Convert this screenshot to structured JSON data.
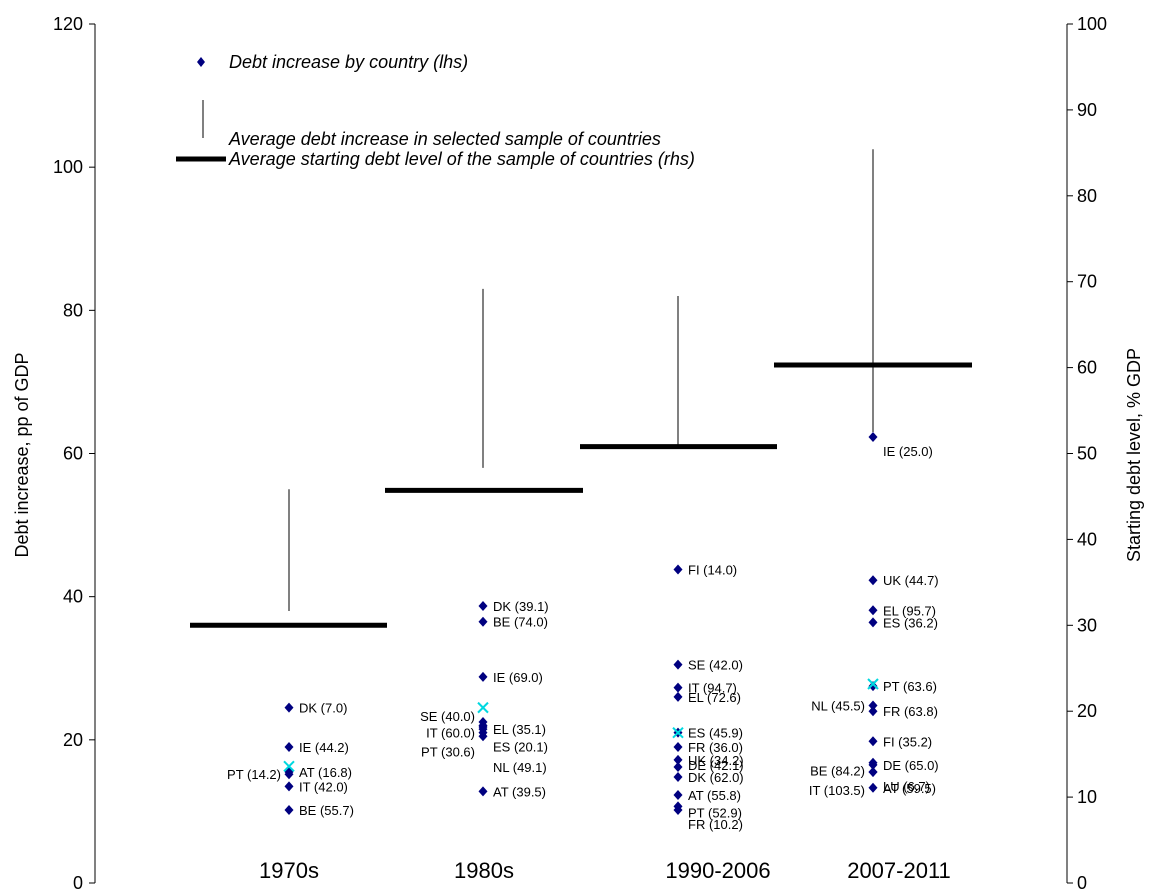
{
  "chart_data": {
    "type": "scatter",
    "categories": [
      "1970s",
      "1980s",
      "1990-2006",
      "2007-2011"
    ],
    "y_left": {
      "label": "Debt increase, pp of GDP",
      "ylim": [
        0,
        120
      ],
      "ticks": [
        "0",
        "20",
        "40",
        "60",
        "80",
        "100",
        "120"
      ]
    },
    "y_right": {
      "label": "Starting debt level,  % GDP",
      "ylim": [
        0,
        100
      ],
      "ticks": [
        "0",
        "10",
        "20",
        "30",
        "40",
        "50",
        "60",
        "70",
        "80",
        "90",
        "100"
      ]
    },
    "legend": {
      "placement": "top-left",
      "entries": [
        "Debt increase by country (lhs)",
        "Average debt increase in selected sample of countries",
        "Average starting debt level of the sample of countries (rhs)"
      ]
    },
    "colors": {
      "points": "#000080",
      "average_marker": "#00d8e0",
      "bars": "#000000"
    },
    "series": [
      {
        "category": "1970s",
        "avg_starting_debt_rhs": 30,
        "avg_increase_range": [
          38,
          55
        ],
        "avg_increase_marker": 16.3,
        "points": [
          {
            "label": "DK (7.0)",
            "value": 24.5,
            "side": "right"
          },
          {
            "label": "IE (44.2)",
            "value": 19,
            "side": "right"
          },
          {
            "label": "AT (16.8)",
            "value": 15.5,
            "side": "right"
          },
          {
            "label": "PT (14.2)",
            "value": 15.2,
            "side": "left"
          },
          {
            "label": "IT (42.0)",
            "value": 13.5,
            "side": "right"
          },
          {
            "label": "BE (55.7)",
            "value": 10.2,
            "side": "right"
          }
        ]
      },
      {
        "category": "1980s",
        "avg_starting_debt_rhs": 45.7,
        "avg_increase_range": [
          58,
          83
        ],
        "avg_increase_marker": 24.5,
        "points": [
          {
            "label": "DK (39.1)",
            "value": 38.7,
            "side": "right"
          },
          {
            "label": "BE (74.0)",
            "value": 36.5,
            "side": "right"
          },
          {
            "label": "IE (69.0)",
            "value": 28.8,
            "side": "right"
          },
          {
            "label": "SE (40.0)",
            "value": 22.5,
            "side": "left"
          },
          {
            "label": "EL (35.1)",
            "value": 21.5,
            "side": "right"
          },
          {
            "label": "IT (60.0)",
            "value": 21,
            "side": "left"
          },
          {
            "label": "ES (20.1)",
            "value": 20.5,
            "side": "right"
          },
          {
            "label": "PT (30.6)",
            "value": 22,
            "side": "left"
          },
          {
            "label": "NL (49.1)",
            "value": 21.8,
            "side": "right"
          },
          {
            "label": "AT (39.5)",
            "value": 12.8,
            "side": "right"
          }
        ]
      },
      {
        "category": "1990-2006",
        "avg_starting_debt_rhs": 50.8,
        "avg_increase_range": [
          61,
          82
        ],
        "avg_increase_marker": 21,
        "points": [
          {
            "label": "FI (14.0)",
            "value": 43.8,
            "side": "right"
          },
          {
            "label": "SE (42.0)",
            "value": 30.5,
            "side": "right"
          },
          {
            "label": "IT (94.7)",
            "value": 27.3,
            "side": "right"
          },
          {
            "label": "EL (72.6)",
            "value": 26,
            "side": "right"
          },
          {
            "label": "ES (45.9)",
            "value": 21,
            "side": "right"
          },
          {
            "label": "FR (36.0)",
            "value": 19,
            "side": "right"
          },
          {
            "label": "UK (34.2)",
            "value": 17.2,
            "side": "right"
          },
          {
            "label": "DE (42.1)",
            "value": 16.2,
            "side": "right"
          },
          {
            "label": "DK (62.0)",
            "value": 14.8,
            "side": "right"
          },
          {
            "label": "AT (55.8)",
            "value": 12.3,
            "side": "right"
          },
          {
            "label": "PT (52.9)",
            "value": 10.7,
            "side": "right"
          },
          {
            "label": "FR (10.2)",
            "value": 10.2,
            "side": "right"
          }
        ]
      },
      {
        "category": "2007-2011",
        "avg_starting_debt_rhs": 60.3,
        "avg_increase_range": [
          63,
          102.5
        ],
        "avg_increase_marker": 27.8,
        "points": [
          {
            "label": "IE (25.0)",
            "value": 62.3,
            "side": "right"
          },
          {
            "label": "UK (44.7)",
            "value": 42.3,
            "side": "right"
          },
          {
            "label": "EL (95.7)",
            "value": 38.1,
            "side": "right"
          },
          {
            "label": "ES (36.2)",
            "value": 36.4,
            "side": "right"
          },
          {
            "label": "PT (63.6)",
            "value": 27.5,
            "side": "right"
          },
          {
            "label": "NL (45.5)",
            "value": 24.8,
            "side": "left"
          },
          {
            "label": "FR (63.8)",
            "value": 24,
            "side": "right"
          },
          {
            "label": "FI (35.2)",
            "value": 19.8,
            "side": "right"
          },
          {
            "label": "BE (84.2)",
            "value": 16.8,
            "side": "left"
          },
          {
            "label": "DE (65.0)",
            "value": 16.5,
            "side": "right"
          },
          {
            "label": "IT (103.5)",
            "value": 15.5,
            "side": "left"
          },
          {
            "label": "LU (6.7)",
            "value": 15.5,
            "side": "right"
          },
          {
            "label": "AT (59.5)",
            "value": 13.3,
            "side": "right"
          }
        ]
      }
    ]
  }
}
